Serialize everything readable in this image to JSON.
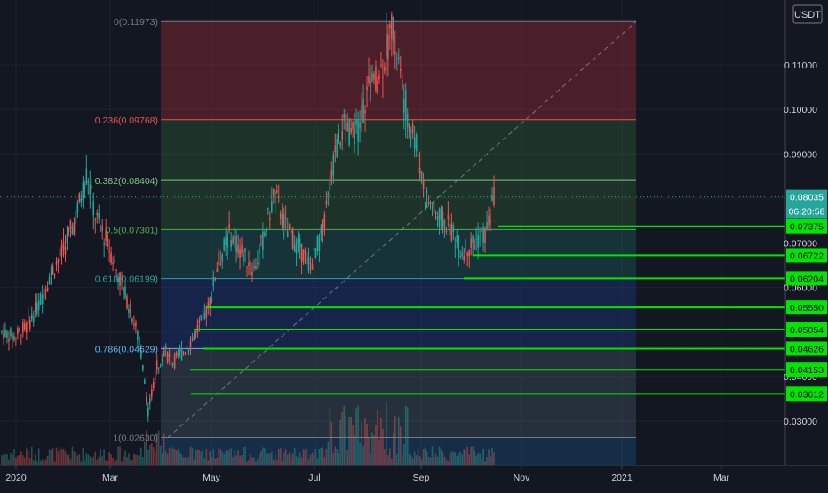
{
  "chart_data": {
    "type": "candlestick",
    "currency": "USDT",
    "x_tick_labels": [
      "2020",
      "Mar",
      "May",
      "Jul",
      "Sep",
      "Nov",
      "2021",
      "Mar"
    ],
    "y_tick_labels": [
      "0.11000",
      "0.10000",
      "0.09000",
      "0.07000",
      "0.06000",
      "0.04000",
      "0.03000"
    ],
    "ylim": [
      0.0215,
      0.123
    ],
    "grid": true,
    "fib_levels": [
      {
        "ratio": 0,
        "price": 0.11973,
        "label": "0(0.11973)",
        "color": "#787b86"
      },
      {
        "ratio": 0.236,
        "price": 0.09768,
        "label": "0.236(0.09768)",
        "color": "#ef5350"
      },
      {
        "ratio": 0.382,
        "price": 0.08404,
        "label": "0.382(0.08404)",
        "color": "#81c784"
      },
      {
        "ratio": 0.5,
        "price": 0.07301,
        "label": "0.5(0.07301)",
        "color": "#4caf50"
      },
      {
        "ratio": 0.618,
        "price": 0.06199,
        "label": "0.618(0.06199)",
        "color": "#26a69a"
      },
      {
        "ratio": 0.786,
        "price": 0.04629,
        "label": "0.786(0.04629)",
        "color": "#64b5f6"
      },
      {
        "ratio": 1,
        "price": 0.0263,
        "label": "1(0.02630)",
        "color": "#787b86"
      }
    ],
    "horizontal_levels": [
      0.07375,
      0.06722,
      0.06204,
      0.0555,
      0.05054,
      0.04626,
      0.04153,
      0.03612
    ],
    "horizontal_level_labels": [
      "0.07375",
      "0.06722",
      "0.06204",
      "0.05550",
      "0.05054",
      "0.04626",
      "0.04153",
      "0.03612"
    ],
    "last_price": 0.08035,
    "last_price_label": "0.08035",
    "countdown": "06:20:58",
    "price_path": [
      [
        0.0,
        0.05
      ],
      [
        0.03,
        0.049
      ],
      [
        0.06,
        0.051
      ],
      [
        0.09,
        0.056
      ],
      [
        0.12,
        0.063
      ],
      [
        0.15,
        0.068
      ],
      [
        0.18,
        0.075
      ],
      [
        0.21,
        0.086
      ],
      [
        0.23,
        0.076
      ],
      [
        0.26,
        0.07
      ],
      [
        0.29,
        0.062
      ],
      [
        0.32,
        0.054
      ],
      [
        0.34,
        0.047
      ],
      [
        0.36,
        0.032
      ],
      [
        0.38,
        0.042
      ],
      [
        0.4,
        0.046
      ],
      [
        0.42,
        0.043
      ],
      [
        0.45,
        0.046
      ],
      [
        0.48,
        0.05
      ],
      [
        0.51,
        0.056
      ],
      [
        0.53,
        0.065
      ],
      [
        0.56,
        0.072
      ],
      [
        0.59,
        0.068
      ],
      [
        0.62,
        0.064
      ],
      [
        0.64,
        0.07
      ],
      [
        0.67,
        0.081
      ],
      [
        0.7,
        0.073
      ],
      [
        0.73,
        0.069
      ],
      [
        0.76,
        0.065
      ],
      [
        0.79,
        0.073
      ],
      [
        0.82,
        0.09
      ],
      [
        0.84,
        0.096
      ],
      [
        0.87,
        0.094
      ],
      [
        0.9,
        0.104
      ],
      [
        0.93,
        0.108
      ],
      [
        0.96,
        0.119
      ],
      [
        0.99,
        0.102
      ],
      [
        1.02,
        0.092
      ],
      [
        1.04,
        0.081
      ],
      [
        1.07,
        0.076
      ],
      [
        1.1,
        0.074
      ],
      [
        1.13,
        0.068
      ],
      [
        1.16,
        0.07
      ],
      [
        1.19,
        0.072
      ],
      [
        1.21,
        0.08
      ]
    ],
    "price_path_x_range": [
      0.0,
      1.21
    ]
  }
}
